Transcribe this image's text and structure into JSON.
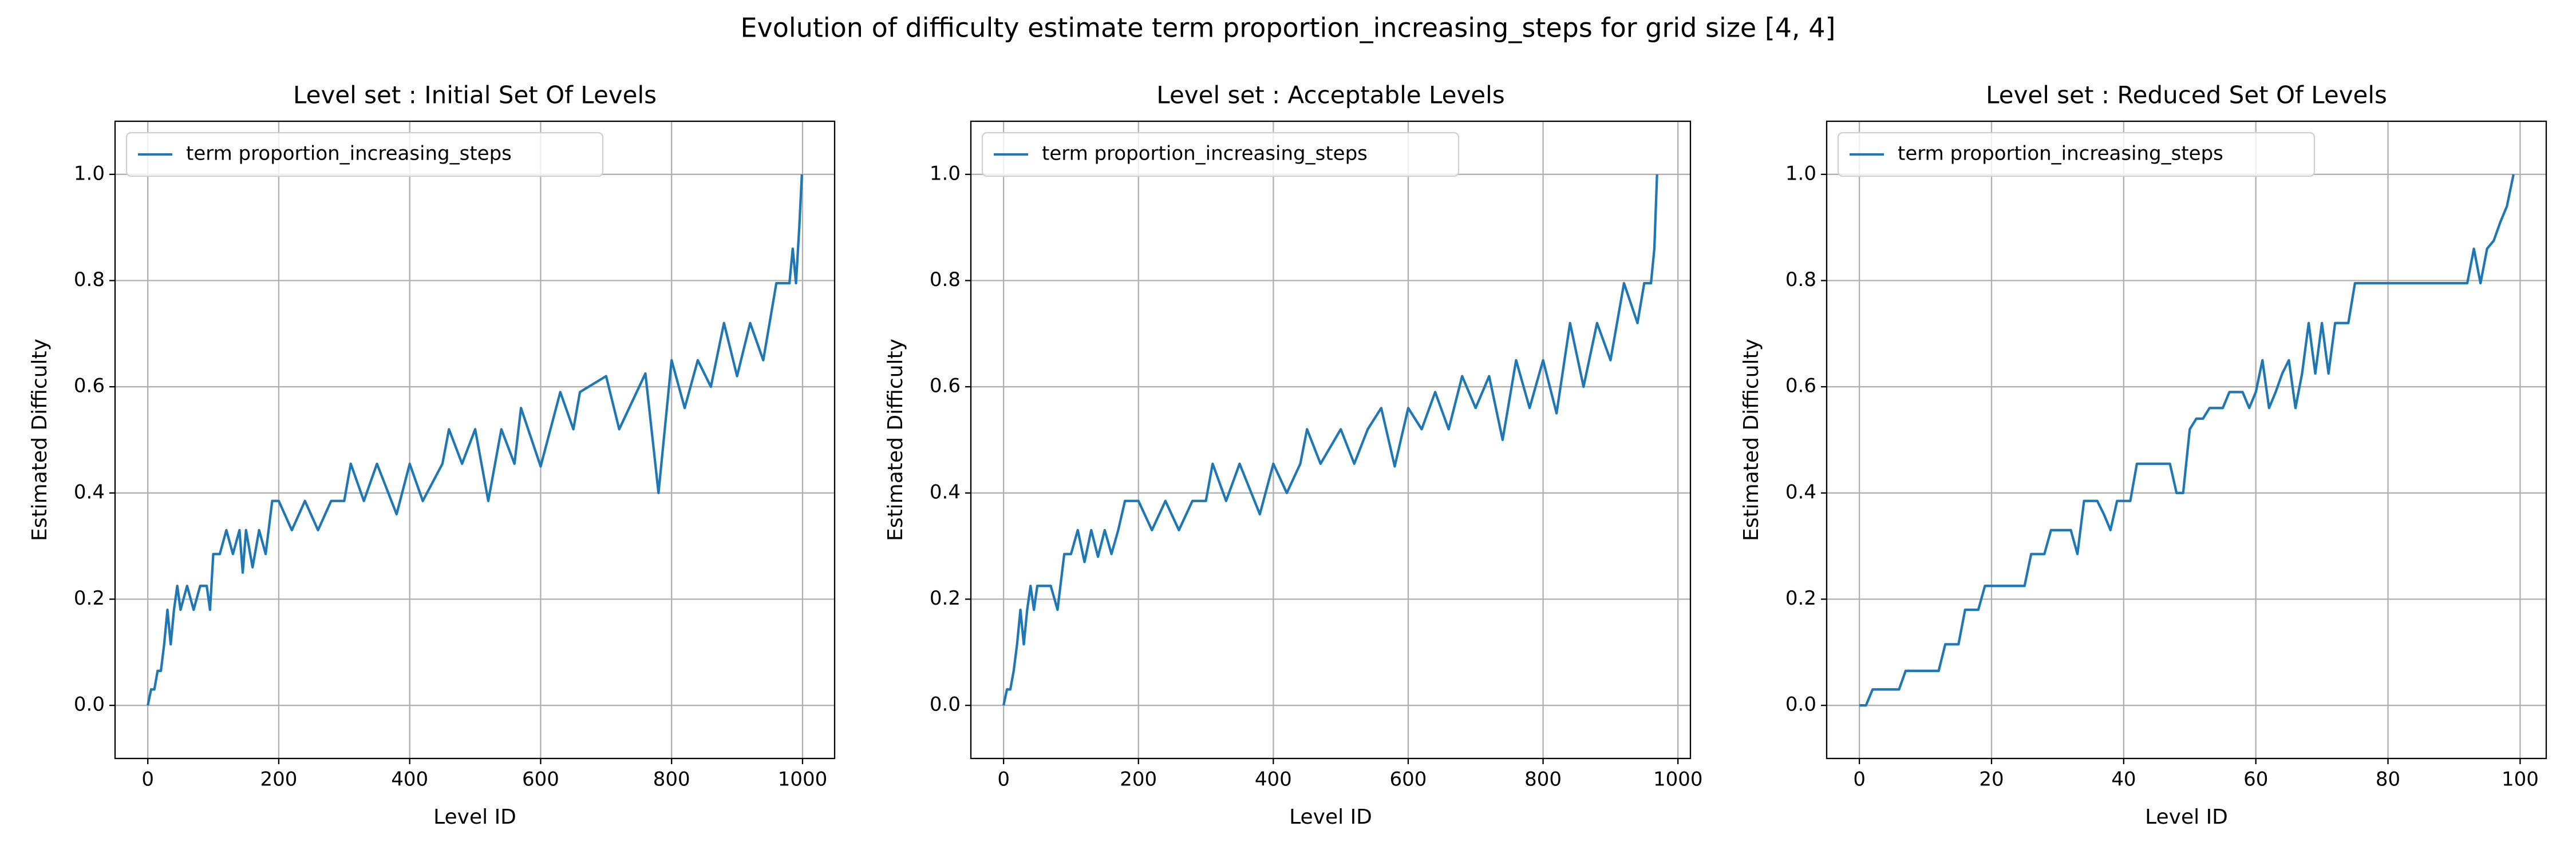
{
  "title": "Evolution of difficulty estimate term proportion_increasing_steps for grid size [4, 4]",
  "chart_data": [
    {
      "type": "line",
      "title": "Level set : Initial Set Of Levels",
      "xlabel": "Level ID",
      "ylabel": "Estimated Difficulty",
      "grid": true,
      "legend": "upper left",
      "xlim": [
        -50,
        1049
      ],
      "ylim": [
        -0.1,
        1.1
      ],
      "xticks": [
        0,
        200,
        400,
        600,
        800,
        1000
      ],
      "yticks": [
        {
          "value": 0,
          "label": "0.0"
        },
        0.2,
        0.4,
        0.6,
        0.8,
        {
          "value": 1,
          "label": "1.0"
        }
      ],
      "x": [
        0,
        5,
        10,
        15,
        20,
        25,
        30,
        35,
        40,
        45,
        50,
        60,
        70,
        80,
        90,
        95,
        100,
        110,
        120,
        130,
        140,
        145,
        150,
        160,
        170,
        180,
        190,
        200,
        220,
        240,
        260,
        280,
        300,
        310,
        330,
        350,
        380,
        400,
        420,
        450,
        460,
        480,
        500,
        520,
        540,
        560,
        570,
        600,
        630,
        650,
        660,
        700,
        720,
        760,
        780,
        800,
        820,
        840,
        860,
        880,
        900,
        920,
        940,
        960,
        980,
        985,
        990,
        995,
        999
      ],
      "series": [
        {
          "name": "term proportion_increasing_steps",
          "color": "#1f77b4",
          "values": [
            0,
            0.03,
            0.03,
            0.065,
            0.065,
            0.115,
            0.18,
            0.115,
            0.18,
            0.225,
            0.18,
            0.225,
            0.18,
            0.225,
            0.225,
            0.18,
            0.285,
            0.285,
            0.33,
            0.285,
            0.33,
            0.25,
            0.33,
            0.26,
            0.33,
            0.285,
            0.385,
            0.385,
            0.33,
            0.385,
            0.33,
            0.385,
            0.385,
            0.455,
            0.385,
            0.455,
            0.36,
            0.455,
            0.385,
            0.455,
            0.52,
            0.455,
            0.52,
            0.385,
            0.52,
            0.455,
            0.56,
            0.45,
            0.59,
            0.52,
            0.59,
            0.62,
            0.52,
            0.625,
            0.4,
            0.65,
            0.56,
            0.65,
            0.6,
            0.72,
            0.62,
            0.72,
            0.65,
            0.795,
            0.795,
            0.86,
            0.795,
            0.9,
            1.0
          ]
        }
      ]
    },
    {
      "type": "line",
      "title": "Level set : Acceptable Levels",
      "xlabel": "Level ID",
      "ylabel": "Estimated Difficulty",
      "grid": true,
      "legend": "upper left",
      "xlim": [
        -48.5,
        1018.5
      ],
      "ylim": [
        -0.1,
        1.1
      ],
      "xticks": [
        0,
        200,
        400,
        600,
        800,
        1000
      ],
      "yticks": [
        {
          "value": 0,
          "label": "0.0"
        },
        0.2,
        0.4,
        0.6,
        0.8,
        {
          "value": 1,
          "label": "1.0"
        }
      ],
      "x": [
        0,
        5,
        10,
        15,
        20,
        25,
        30,
        35,
        40,
        45,
        50,
        60,
        70,
        80,
        90,
        95,
        100,
        110,
        120,
        130,
        140,
        150,
        160,
        170,
        180,
        190,
        200,
        220,
        240,
        260,
        280,
        300,
        310,
        330,
        350,
        380,
        400,
        420,
        440,
        450,
        470,
        500,
        520,
        540,
        560,
        580,
        600,
        620,
        640,
        660,
        680,
        700,
        720,
        740,
        760,
        780,
        800,
        820,
        840,
        860,
        880,
        900,
        920,
        940,
        950,
        960,
        965,
        969
      ],
      "series": [
        {
          "name": "term proportion_increasing_steps",
          "color": "#1f77b4",
          "values": [
            0,
            0.03,
            0.03,
            0.065,
            0.115,
            0.18,
            0.115,
            0.18,
            0.225,
            0.18,
            0.225,
            0.225,
            0.225,
            0.18,
            0.285,
            0.285,
            0.285,
            0.33,
            0.27,
            0.33,
            0.28,
            0.33,
            0.285,
            0.33,
            0.385,
            0.385,
            0.385,
            0.33,
            0.385,
            0.33,
            0.385,
            0.385,
            0.455,
            0.385,
            0.455,
            0.36,
            0.455,
            0.4,
            0.455,
            0.52,
            0.455,
            0.52,
            0.455,
            0.52,
            0.56,
            0.45,
            0.56,
            0.52,
            0.59,
            0.52,
            0.62,
            0.56,
            0.62,
            0.5,
            0.65,
            0.56,
            0.65,
            0.55,
            0.72,
            0.6,
            0.72,
            0.65,
            0.795,
            0.72,
            0.795,
            0.795,
            0.86,
            1.0
          ]
        }
      ]
    },
    {
      "type": "line",
      "title": "Level set : Reduced Set Of Levels",
      "xlabel": "Level ID",
      "ylabel": "Estimated Difficulty",
      "grid": true,
      "legend": "upper left",
      "xlim": [
        -4.95,
        103.95
      ],
      "ylim": [
        -0.1,
        1.1
      ],
      "xticks": [
        0,
        20,
        40,
        60,
        80,
        100
      ],
      "yticks": [
        {
          "value": 0,
          "label": "0.0"
        },
        0.2,
        0.4,
        0.6,
        0.8,
        {
          "value": 1,
          "label": "1.0"
        }
      ],
      "x": [
        0,
        1,
        2,
        3,
        4,
        5,
        6,
        7,
        8,
        9,
        10,
        11,
        12,
        13,
        14,
        15,
        16,
        17,
        18,
        19,
        20,
        21,
        22,
        23,
        24,
        25,
        26,
        27,
        28,
        29,
        30,
        31,
        32,
        33,
        34,
        35,
        36,
        37,
        38,
        39,
        40,
        41,
        42,
        43,
        44,
        45,
        46,
        47,
        48,
        49,
        50,
        51,
        52,
        53,
        54,
        55,
        56,
        57,
        58,
        59,
        60,
        61,
        62,
        63,
        64,
        65,
        66,
        67,
        68,
        69,
        70,
        71,
        72,
        73,
        74,
        75,
        76,
        77,
        78,
        79,
        80,
        81,
        82,
        83,
        84,
        85,
        86,
        87,
        88,
        89,
        90,
        91,
        92,
        93,
        94,
        95,
        96,
        97,
        98,
        99
      ],
      "series": [
        {
          "name": "term proportion_increasing_steps",
          "color": "#1f77b4",
          "values": [
            0,
            0,
            0.03,
            0.03,
            0.03,
            0.03,
            0.03,
            0.065,
            0.065,
            0.065,
            0.065,
            0.065,
            0.065,
            0.115,
            0.115,
            0.115,
            0.18,
            0.18,
            0.18,
            0.225,
            0.225,
            0.225,
            0.225,
            0.225,
            0.225,
            0.225,
            0.285,
            0.285,
            0.285,
            0.33,
            0.33,
            0.33,
            0.33,
            0.285,
            0.385,
            0.385,
            0.385,
            0.36,
            0.33,
            0.385,
            0.385,
            0.385,
            0.455,
            0.455,
            0.455,
            0.455,
            0.455,
            0.455,
            0.4,
            0.4,
            0.52,
            0.54,
            0.54,
            0.56,
            0.56,
            0.56,
            0.59,
            0.59,
            0.59,
            0.56,
            0.59,
            0.65,
            0.56,
            0.59,
            0.625,
            0.65,
            0.56,
            0.625,
            0.72,
            0.625,
            0.72,
            0.625,
            0.72,
            0.72,
            0.72,
            0.795,
            0.795,
            0.795,
            0.795,
            0.795,
            0.795,
            0.795,
            0.795,
            0.795,
            0.795,
            0.795,
            0.795,
            0.795,
            0.795,
            0.795,
            0.795,
            0.795,
            0.795,
            0.86,
            0.795,
            0.86,
            0.875,
            0.91,
            0.94,
            1.0
          ]
        }
      ]
    }
  ]
}
